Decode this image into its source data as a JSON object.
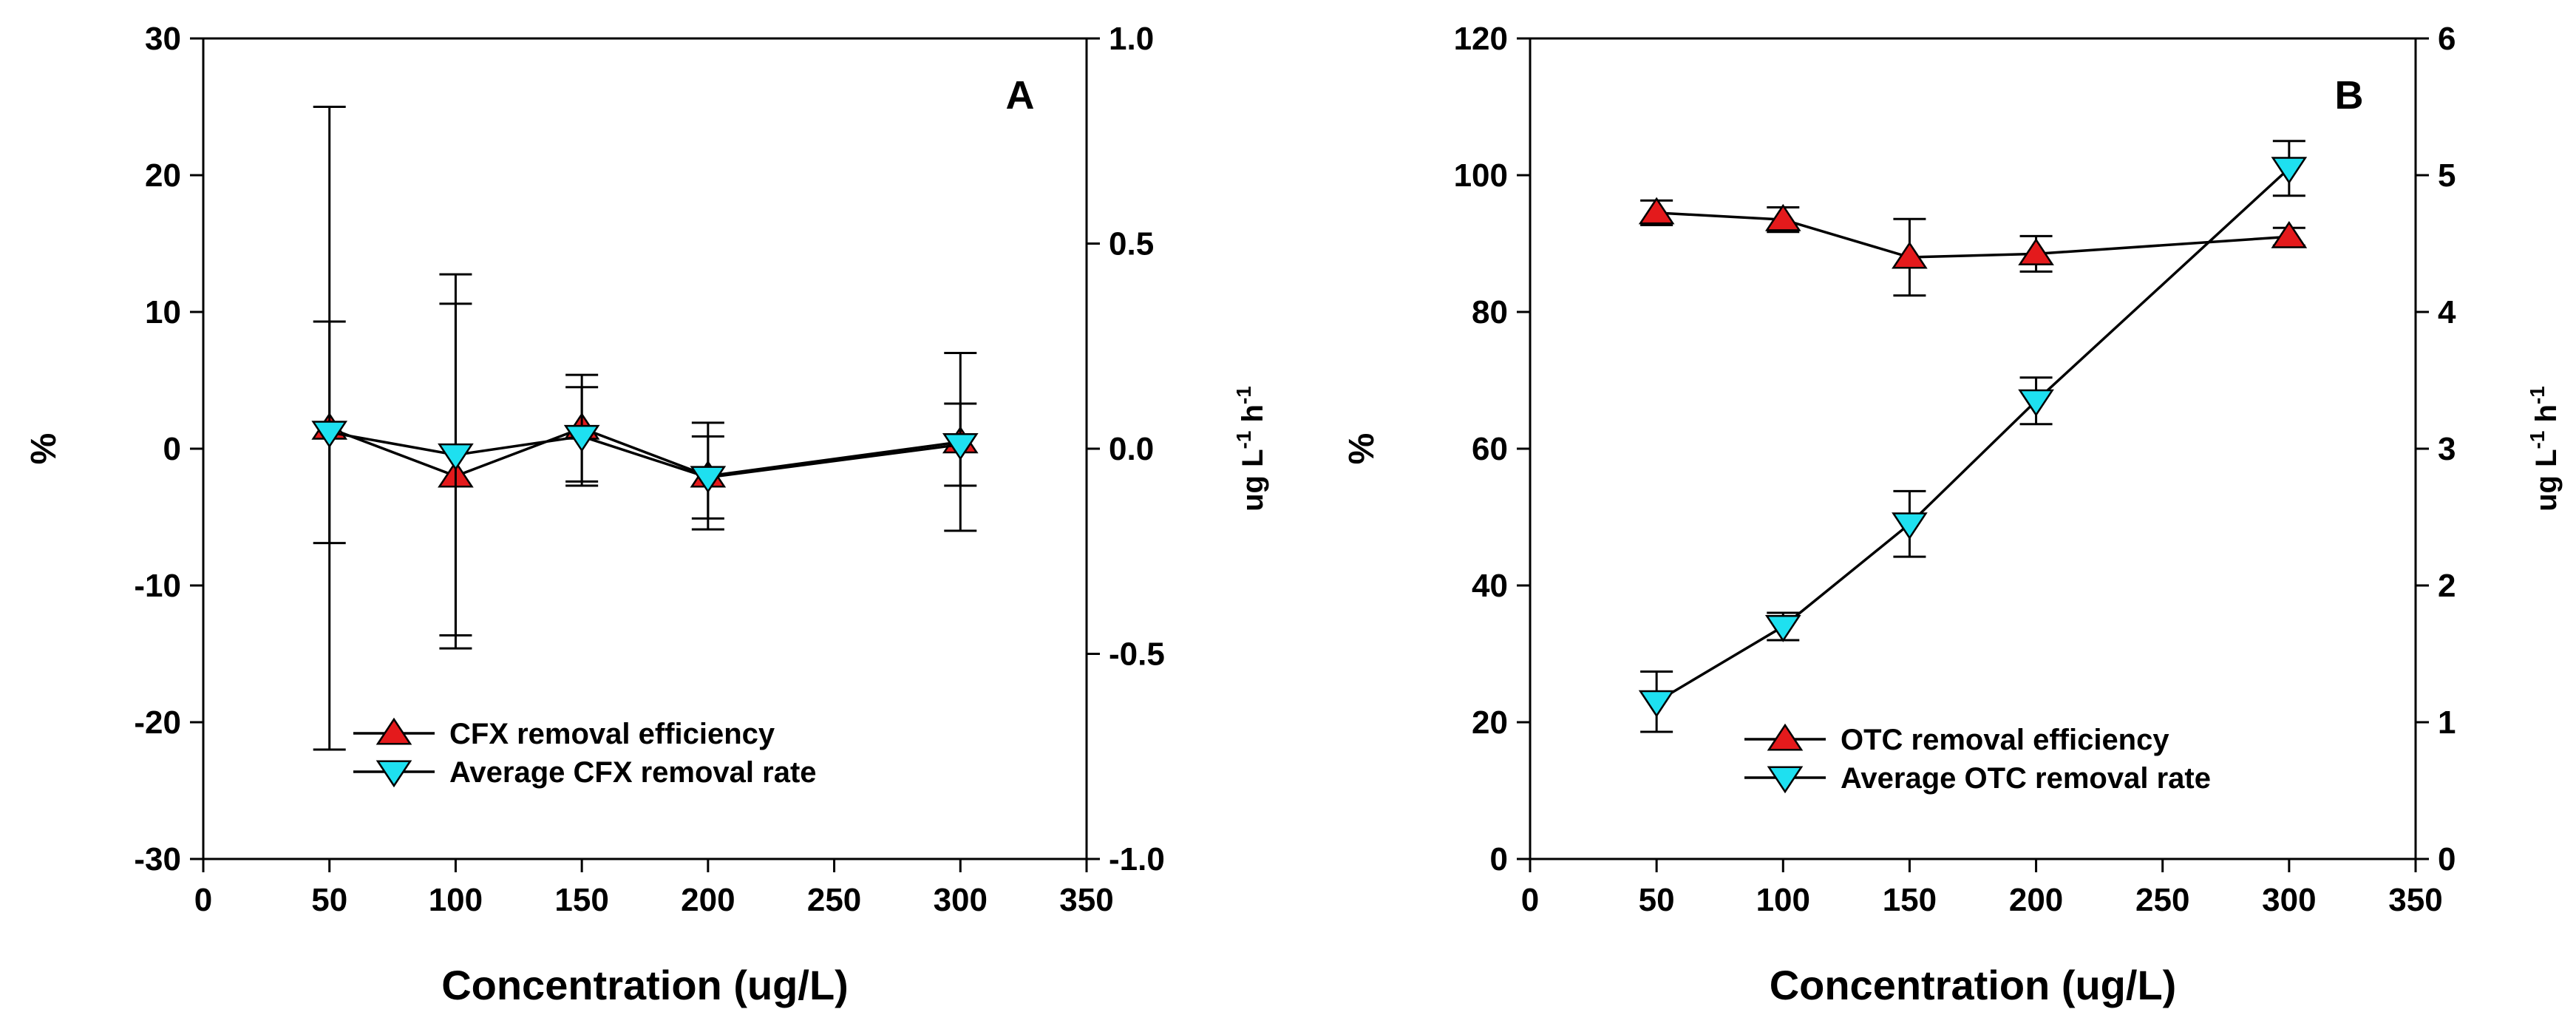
{
  "chart_data": [
    {
      "type": "line",
      "panel_label": "A",
      "xlabel": "Concentration (ug/L)",
      "ylabel": "%",
      "ylabel_right": "ug L-1 h-1",
      "ylabel_right_parts": [
        "ug L",
        "-1",
        " h",
        "-1"
      ],
      "xlim": [
        0,
        350
      ],
      "ylim": [
        -30,
        30
      ],
      "ylim_right": [
        -1.0,
        1.0
      ],
      "xticks": [
        "0",
        "50",
        "100",
        "150",
        "200",
        "250",
        "300",
        "350"
      ],
      "yticks": [
        "-30",
        "-20",
        "-10",
        "0",
        "10",
        "20",
        "30"
      ],
      "yticks_right": [
        "-1.0",
        "-0.5",
        "0.0",
        "0.5",
        "1.0"
      ],
      "legend_position": "bottom-left",
      "series": [
        {
          "name": "CFX removal efficiency",
          "axis": "left",
          "marker": "triangle-up",
          "color": "#e41a1c",
          "x": [
            50,
            100,
            150,
            200,
            300
          ],
          "y": [
            1.5,
            -2.0,
            1.5,
            -2.0,
            0.5
          ],
          "err": [
            23.5,
            12.6,
            3.9,
            3.9,
            6.5
          ]
        },
        {
          "name": "Average CFX removal rate",
          "axis": "right",
          "marker": "triangle-down",
          "color": "#1ee0f0",
          "x": [
            50,
            100,
            150,
            200,
            300
          ],
          "y": [
            0.04,
            -0.015,
            0.03,
            -0.07,
            0.01
          ],
          "err": [
            0.27,
            0.44,
            0.12,
            0.1,
            0.1
          ]
        }
      ]
    },
    {
      "type": "line",
      "panel_label": "B",
      "xlabel": "Concentration (ug/L)",
      "ylabel": "%",
      "ylabel_right": "ug L-1 h-1",
      "ylabel_right_parts": [
        "ug L",
        "-1",
        " h",
        "-1"
      ],
      "xlim": [
        0,
        350
      ],
      "ylim": [
        0,
        120
      ],
      "ylim_right": [
        0,
        6
      ],
      "xticks": [
        "0",
        "50",
        "100",
        "150",
        "200",
        "250",
        "300",
        "350"
      ],
      "yticks": [
        "0",
        "20",
        "40",
        "60",
        "80",
        "100",
        "120"
      ],
      "yticks_right": [
        "0",
        "1",
        "2",
        "3",
        "4",
        "5",
        "6"
      ],
      "legend_position": "bottom-left",
      "series": [
        {
          "name": "OTC removal efficiency",
          "axis": "left",
          "marker": "triangle-up",
          "color": "#e41a1c",
          "x": [
            50,
            100,
            150,
            200,
            300
          ],
          "y": [
            94.5,
            93.5,
            88.0,
            88.5,
            91.0
          ],
          "err": [
            1.8,
            1.8,
            5.6,
            2.6,
            1.3
          ]
        },
        {
          "name": "Average OTC removal rate",
          "axis": "right",
          "marker": "triangle-down",
          "color": "#1ee0f0",
          "x": [
            50,
            100,
            150,
            200,
            300
          ],
          "y": [
            1.15,
            1.7,
            2.45,
            3.35,
            5.05
          ],
          "err": [
            0.22,
            0.1,
            0.24,
            0.17,
            0.2
          ]
        }
      ]
    }
  ]
}
